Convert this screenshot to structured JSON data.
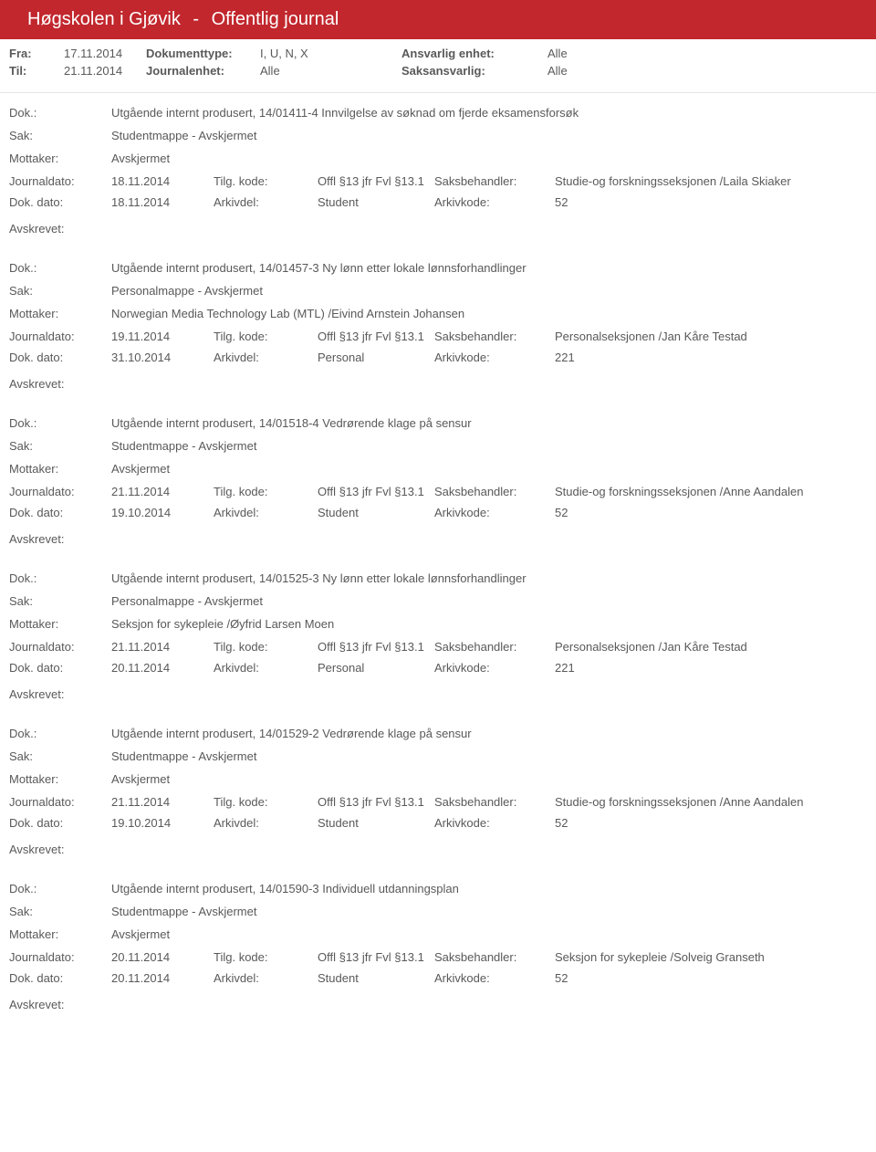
{
  "header": {
    "institution": "Høgskolen i Gjøvik",
    "separator": "-",
    "title": "Offentlig journal"
  },
  "filters": {
    "row1": {
      "lbl1": "Fra:",
      "val1": "17.11.2014",
      "lbl2": "Dokumenttype:",
      "val2": "I, U, N, X",
      "lbl3": "Ansvarlig enhet:",
      "val3": "Alle"
    },
    "row2": {
      "lbl1": "Til:",
      "val1": "21.11.2014",
      "lbl2": "Journalenhet:",
      "val2": "Alle",
      "lbl3": "Saksansvarlig:",
      "val3": "Alle"
    }
  },
  "labels": {
    "dok": "Dok.:",
    "sak": "Sak:",
    "mottaker": "Mottaker:",
    "journaldato": "Journaldato:",
    "dokdato": "Dok. dato:",
    "tilgkode": "Tilg. kode:",
    "arkivdel": "Arkivdel:",
    "saksbehandler": "Saksbehandler:",
    "arkivkode": "Arkivkode:",
    "avskrevet": "Avskrevet:"
  },
  "entries": [
    {
      "dok": "Utgående internt produsert, 14/01411-4 Innvilgelse av søknad om fjerde eksamensforsøk",
      "sak": "Studentmappe - Avskjermet",
      "mottaker": "Avskjermet",
      "journaldato": "18.11.2014",
      "tilgkode": "Offl §13 jfr Fvl §13.1",
      "saksbehandler": "Studie-og forskningsseksjonen /Laila Skiaker",
      "dokdato": "18.11.2014",
      "arkivdel": "Student",
      "arkivkode": "52"
    },
    {
      "dok": "Utgående internt produsert, 14/01457-3 Ny lønn etter lokale lønnsforhandlinger",
      "sak": "Personalmappe - Avskjermet",
      "mottaker": "Norwegian Media Technology Lab (MTL) /Eivind Arnstein Johansen",
      "journaldato": "19.11.2014",
      "tilgkode": "Offl §13 jfr Fvl §13.1",
      "saksbehandler": "Personalseksjonen /Jan Kåre Testad",
      "dokdato": "31.10.2014",
      "arkivdel": "Personal",
      "arkivkode": "221"
    },
    {
      "dok": "Utgående internt produsert, 14/01518-4 Vedrørende klage på sensur",
      "sak": "Studentmappe - Avskjermet",
      "mottaker": "Avskjermet",
      "journaldato": "21.11.2014",
      "tilgkode": "Offl §13 jfr Fvl §13.1",
      "saksbehandler": "Studie-og forskningsseksjonen /Anne Aandalen",
      "dokdato": "19.10.2014",
      "arkivdel": "Student",
      "arkivkode": "52"
    },
    {
      "dok": "Utgående internt produsert, 14/01525-3 Ny lønn etter lokale lønnsforhandlinger",
      "sak": "Personalmappe - Avskjermet",
      "mottaker": "Seksjon for sykepleie /Øyfrid Larsen Moen",
      "journaldato": "21.11.2014",
      "tilgkode": "Offl §13 jfr Fvl §13.1",
      "saksbehandler": "Personalseksjonen /Jan Kåre Testad",
      "dokdato": "20.11.2014",
      "arkivdel": "Personal",
      "arkivkode": "221"
    },
    {
      "dok": "Utgående internt produsert, 14/01529-2 Vedrørende klage på sensur",
      "sak": "Studentmappe - Avskjermet",
      "mottaker": "Avskjermet",
      "journaldato": "21.11.2014",
      "tilgkode": "Offl §13 jfr Fvl §13.1",
      "saksbehandler": "Studie-og forskningsseksjonen /Anne Aandalen",
      "dokdato": "19.10.2014",
      "arkivdel": "Student",
      "arkivkode": "52"
    },
    {
      "dok": "Utgående internt produsert, 14/01590-3 Individuell utdanningsplan",
      "sak": "Studentmappe - Avskjermet",
      "mottaker": "Avskjermet",
      "journaldato": "20.11.2014",
      "tilgkode": "Offl §13 jfr Fvl §13.1",
      "saksbehandler": "Seksjon for sykepleie /Solveig Granseth",
      "dokdato": "20.11.2014",
      "arkivdel": "Student",
      "arkivkode": "52"
    }
  ]
}
